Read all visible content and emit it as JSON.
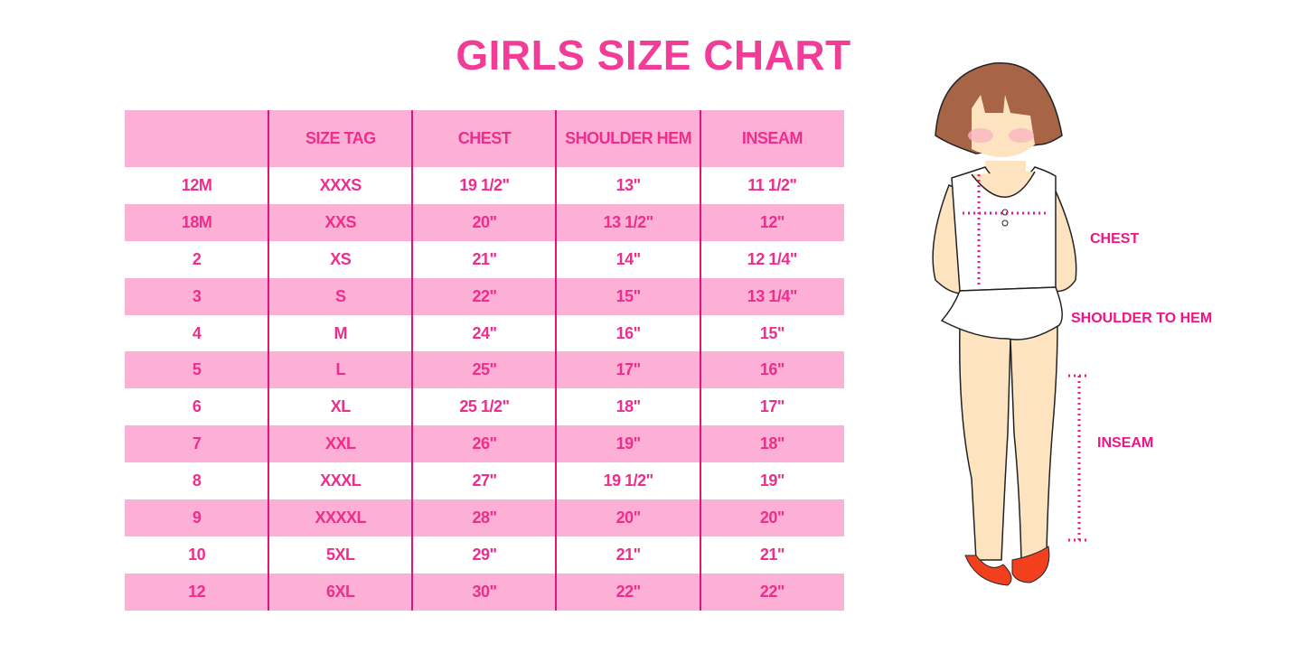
{
  "title": "GIRLS SIZE CHART",
  "table": {
    "headers": [
      "",
      "SIZE TAG",
      "CHEST",
      "SHOULDER HEM",
      "INSEAM"
    ],
    "rows": [
      [
        "12M",
        "XXXS",
        "19 1/2\"",
        "13\"",
        "11 1/2\""
      ],
      [
        "18M",
        "XXS",
        "20\"",
        "13 1/2\"",
        "12\""
      ],
      [
        "2",
        "XS",
        "21\"",
        "14\"",
        "12 1/4\""
      ],
      [
        "3",
        "S",
        "22\"",
        "15\"",
        "13 1/4\""
      ],
      [
        "4",
        "M",
        "24\"",
        "16\"",
        "15\""
      ],
      [
        "5",
        "L",
        "25\"",
        "17\"",
        "16\""
      ],
      [
        "6",
        "XL",
        "25 1/2\"",
        "18\"",
        "17\""
      ],
      [
        "7",
        "XXL",
        "26\"",
        "19\"",
        "18\""
      ],
      [
        "8",
        "XXXL",
        "27\"",
        "19 1/2\"",
        "19\""
      ],
      [
        "9",
        "XXXXL",
        "28\"",
        "20\"",
        "20\""
      ],
      [
        "10",
        "5XL",
        "29\"",
        "21\"",
        "21\""
      ],
      [
        "12",
        "6XL",
        "30\"",
        "22\"",
        "22\""
      ]
    ]
  },
  "figure": {
    "labels": {
      "chest": "CHEST",
      "shoulder_to_hem": "SHOULDER TO HEM",
      "inseam": "INSEAM"
    }
  },
  "colors": {
    "accent": "#ee2d8c",
    "stripe": "#fdb0d5",
    "divider": "#e3127f"
  }
}
